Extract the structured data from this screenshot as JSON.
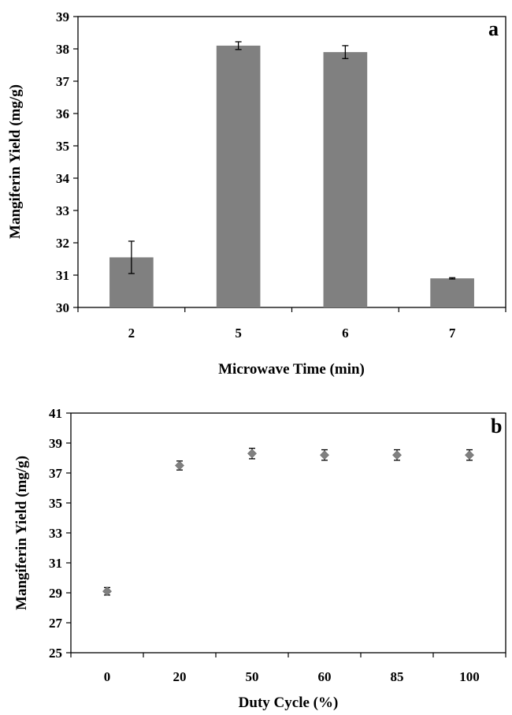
{
  "chart_data": [
    {
      "type": "bar",
      "panel_label": "a",
      "xlabel": "Microwave Time (min)",
      "ylabel": "Mangiferin Yield  (mg/g)",
      "categories": [
        "2",
        "5",
        "6",
        "7"
      ],
      "values": [
        31.55,
        38.1,
        37.9,
        30.9
      ],
      "errors": [
        0.5,
        0.12,
        0.2,
        0.02
      ],
      "ylim": [
        30,
        39
      ],
      "yticks": [
        "30",
        "31",
        "32",
        "33",
        "34",
        "35",
        "36",
        "37",
        "38",
        "39"
      ],
      "bar_color": "#808080",
      "grid": false,
      "legend": "none"
    },
    {
      "type": "scatter",
      "panel_label": "b",
      "xlabel": "Duty Cycle (%)",
      "ylabel": "Mangiferin Yield  (mg/g)",
      "categories": [
        "0",
        "20",
        "50",
        "60",
        "85",
        "100"
      ],
      "values": [
        29.1,
        37.5,
        38.3,
        38.2,
        38.2,
        38.2
      ],
      "errors": [
        0.25,
        0.3,
        0.35,
        0.35,
        0.35,
        0.35
      ],
      "ylim": [
        25,
        41
      ],
      "yticks": [
        "25",
        "27",
        "29",
        "31",
        "33",
        "35",
        "37",
        "39",
        "41"
      ],
      "marker": "diamond",
      "marker_color": "#808080",
      "grid": false,
      "legend": "none"
    }
  ]
}
